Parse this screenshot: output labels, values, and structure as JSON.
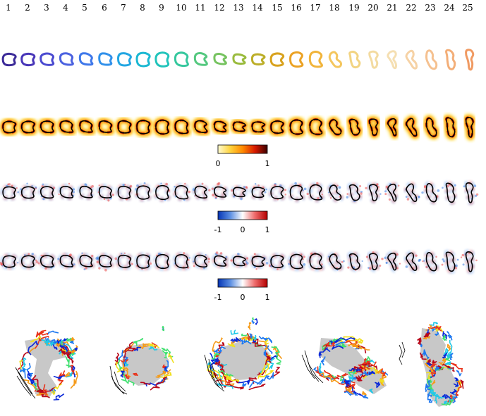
{
  "frames": [
    "1",
    "2",
    "3",
    "4",
    "5",
    "6",
    "7",
    "8",
    "9",
    "10",
    "11",
    "12",
    "13",
    "14",
    "15",
    "16",
    "17",
    "18",
    "19",
    "20",
    "21",
    "22",
    "23",
    "24",
    "25"
  ],
  "row_colors": [
    "#3b2a98",
    "#4836b8",
    "#4a4ad0",
    "#4b62e0",
    "#3f78ea",
    "#3090ea",
    "#22a6e2",
    "#1bb8d2",
    "#22c4bb",
    "#36c89e",
    "#54c87f",
    "#76c360",
    "#9abb3e",
    "#bcae28",
    "#d8a21e",
    "#eba224",
    "#f1b43a",
    "#f4c65e",
    "#f2d483",
    "#f3dba1",
    "#f5dfb2",
    "#f6d2a5",
    "#f5c190",
    "#f3ae78",
    "#f09a62"
  ],
  "colorbars": [
    {
      "id": "heat",
      "colors": [
        "#fffbd0",
        "#ffd33c",
        "#ff8a00",
        "#d81a00",
        "#3a0000"
      ],
      "min_label": "0",
      "max_label": "1",
      "mid_label": ""
    },
    {
      "id": "diverging1",
      "colors": [
        "#0535b5",
        "#5c8fe2",
        "#ffffff",
        "#ee6a6a",
        "#b40000"
      ],
      "min_label": "-1",
      "mid_label": "0",
      "max_label": "1"
    },
    {
      "id": "diverging2",
      "colors": [
        "#0535b5",
        "#5c8fe2",
        "#ffffff",
        "#ee6a6a",
        "#b40000"
      ],
      "min_label": "-1",
      "mid_label": "0",
      "max_label": "1"
    }
  ],
  "track_palette": [
    "#0a28d8",
    "#1e78f0",
    "#20c8e8",
    "#40e070",
    "#f0e020",
    "#f59a18",
    "#e8321a",
    "#b8081a"
  ]
}
